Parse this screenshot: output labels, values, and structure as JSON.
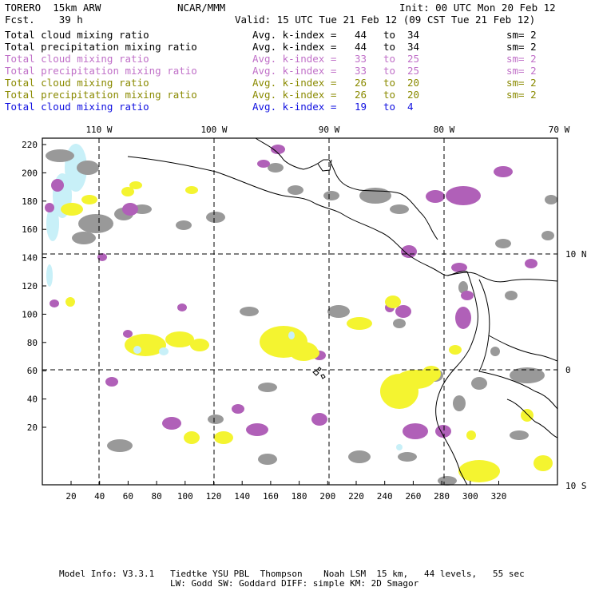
{
  "header": {
    "model": "TORERO  15km ARW",
    "org": "NCAR/MMM",
    "init": "Init: 00 UTC Mon 20 Feb 12",
    "fcst": "Fcst.    39 h",
    "valid": "Valid: 15 UTC Tue 21 Feb 12 (09 CST Tue 21 Feb 12)"
  },
  "legend": [
    {
      "field": "Total cloud mixing ratio",
      "kidx": "Avg. k-index =",
      "from": "44",
      "to": "to",
      "upto": "34",
      "sm": "sm= 2",
      "color": "#000000"
    },
    {
      "field": "Total precipitation mixing ratio",
      "kidx": "Avg. k-index =",
      "from": "44",
      "to": "to",
      "upto": "34",
      "sm": "sm= 2",
      "color": "#000000"
    },
    {
      "field": "Total cloud mixing ratio",
      "kidx": "Avg. k-index =",
      "from": "33",
      "to": "to",
      "upto": "25",
      "sm": "sm= 2",
      "color": "#c070c8"
    },
    {
      "field": "Total precipitation mixing ratio",
      "kidx": "Avg. k-index =",
      "from": "33",
      "to": "to",
      "upto": "25",
      "sm": "sm= 2",
      "color": "#c070c8"
    },
    {
      "field": "Total cloud mixing ratio",
      "kidx": "Avg. k-index =",
      "from": "26",
      "to": "to",
      "upto": "20",
      "sm": "sm= 2",
      "color": "#8a8a00"
    },
    {
      "field": "Total precipitation mixing ratio",
      "kidx": "Avg. k-index =",
      "from": "26",
      "to": "to",
      "upto": "20",
      "sm": "sm= 2",
      "color": "#8a8a00"
    },
    {
      "field": "Total cloud mixing ratio",
      "kidx": "Avg. k-index =",
      "from": "19",
      "to": "to",
      "upto": "4",
      "sm": "",
      "color": "#1010e0"
    }
  ],
  "map": {
    "lon_labels": [
      "110 W",
      "100 W",
      "90 W",
      "80 W",
      "70 W"
    ],
    "lat_labels": [
      "10 N",
      "0",
      "10 S"
    ],
    "x_ticks": [
      "20",
      "40",
      "60",
      "80",
      "100",
      "120",
      "140",
      "160",
      "180",
      "200",
      "220",
      "240",
      "260",
      "280",
      "300",
      "320"
    ],
    "y_ticks": [
      "220",
      "200",
      "180",
      "160",
      "140",
      "120",
      "100",
      "80",
      "60",
      "40",
      "20"
    ],
    "colors": {
      "gray": "#999999",
      "purple": "#b060b8",
      "yellow": "#f4f430",
      "lightblue": "#c8f0f8",
      "line": "#000000"
    }
  },
  "footer": {
    "line1": "Model Info: V3.3.1   Tiedtke YSU PBL  Thompson    Noah LSM  15 km,   44 levels,   55 sec",
    "line2": "LW: Godd SW: Goddard DIFF: simple KM: 2D Smagor"
  }
}
